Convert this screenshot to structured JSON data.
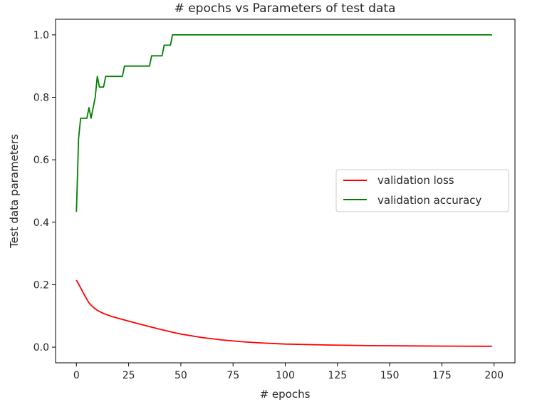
{
  "chart_data": {
    "type": "line",
    "title": "# epochs vs Parameters of test data",
    "xlabel": "# epochs",
    "ylabel": "Test data parameters",
    "xlim": [
      -10,
      210
    ],
    "ylim": [
      -0.05,
      1.05
    ],
    "x_ticks": [
      0,
      25,
      50,
      75,
      100,
      125,
      150,
      175,
      200
    ],
    "x_tick_labels": [
      "0",
      "25",
      "50",
      "75",
      "100",
      "125",
      "150",
      "175",
      "200"
    ],
    "y_ticks": [
      0.0,
      0.2,
      0.4,
      0.6,
      0.8,
      1.0
    ],
    "y_tick_labels": [
      "0.0",
      "0.2",
      "0.4",
      "0.6",
      "0.8",
      "1.0"
    ],
    "grid": false,
    "legend_position": "center-right",
    "series": [
      {
        "name": "validation loss",
        "color": "#ff0000",
        "x": [
          0,
          2,
          4,
          6,
          8,
          10,
          13,
          17,
          22,
          28,
          35,
          42,
          50,
          60,
          70,
          80,
          90,
          100,
          120,
          140,
          160,
          180,
          199
        ],
        "values": [
          0.215,
          0.19,
          0.165,
          0.142,
          0.128,
          0.118,
          0.108,
          0.098,
          0.089,
          0.078,
          0.066,
          0.054,
          0.042,
          0.031,
          0.023,
          0.017,
          0.013,
          0.01,
          0.007,
          0.005,
          0.004,
          0.0035,
          0.003
        ]
      },
      {
        "name": "validation accuracy",
        "color": "#008000",
        "x": [
          0,
          1,
          2,
          3,
          4,
          5,
          6,
          7,
          8,
          9,
          10,
          11,
          12,
          13,
          14,
          15,
          16,
          17,
          18,
          19,
          20,
          21,
          22,
          23,
          24,
          25,
          26,
          27,
          28,
          29,
          30,
          31,
          32,
          33,
          34,
          35,
          36,
          37,
          38,
          39,
          40,
          41,
          42,
          43,
          44,
          45,
          46,
          47,
          48,
          50,
          60,
          80,
          100,
          150,
          199
        ],
        "values": [
          0.433,
          0.667,
          0.733,
          0.733,
          0.733,
          0.733,
          0.767,
          0.733,
          0.767,
          0.8,
          0.867,
          0.833,
          0.833,
          0.833,
          0.867,
          0.867,
          0.867,
          0.867,
          0.867,
          0.867,
          0.867,
          0.867,
          0.867,
          0.9,
          0.9,
          0.9,
          0.9,
          0.9,
          0.9,
          0.9,
          0.9,
          0.9,
          0.9,
          0.9,
          0.9,
          0.9,
          0.933,
          0.933,
          0.933,
          0.933,
          0.933,
          0.933,
          0.967,
          0.967,
          0.967,
          0.967,
          1.0,
          1.0,
          1.0,
          1.0,
          1.0,
          1.0,
          1.0,
          1.0,
          1.0
        ]
      }
    ]
  }
}
